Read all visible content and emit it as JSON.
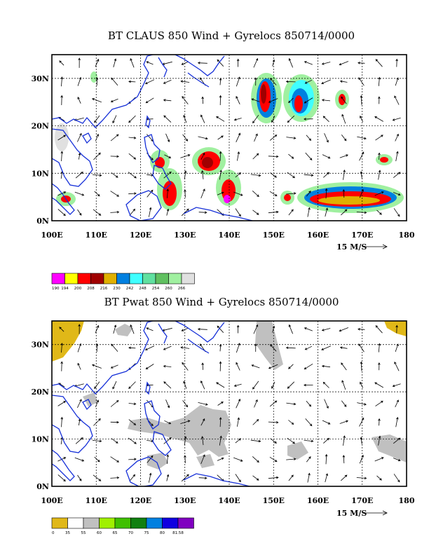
{
  "panels": [
    {
      "title": "BT CLAUS 850 Wind + Gyrelocs 850714/0000",
      "lat_labels": [
        "30N",
        "20N",
        "10N",
        "0N"
      ],
      "lon_labels": [
        "100E",
        "110E",
        "120E",
        "130E",
        "140E",
        "150E",
        "160E",
        "170E",
        "180"
      ],
      "ref_vector": "15 M/S",
      "colorbar": {
        "labels": [
          "190",
          "194",
          "200",
          "208",
          "216",
          "230",
          "242",
          "248",
          "254",
          "260",
          "266"
        ],
        "colors": [
          "#ff00ff",
          "#ffff00",
          "#ff0000",
          "#a00000",
          "#e0b000",
          "#0080e0",
          "#40ffff",
          "#60e0a0",
          "#60c060",
          "#a0f0a0",
          "#e0e0e0"
        ]
      }
    },
    {
      "title": "BT Pwat 850 Wind + Gyrelocs 850714/0000",
      "lat_labels": [
        "30N",
        "20N",
        "10N",
        "0N"
      ],
      "lon_labels": [
        "100E",
        "110E",
        "120E",
        "130E",
        "140E",
        "150E",
        "160E",
        "170E",
        "180"
      ],
      "ref_vector": "15 M/S",
      "colorbar": {
        "labels": [
          "0",
          "35",
          "55",
          "60",
          "65",
          "70",
          "75",
          "80",
          "81.58"
        ],
        "colors": [
          "#e0b818",
          "#ffffff",
          "#c0c0c0",
          "#a0f000",
          "#40c000",
          "#108010",
          "#0080e0",
          "#1000e0",
          "#8000c0"
        ]
      }
    }
  ]
}
